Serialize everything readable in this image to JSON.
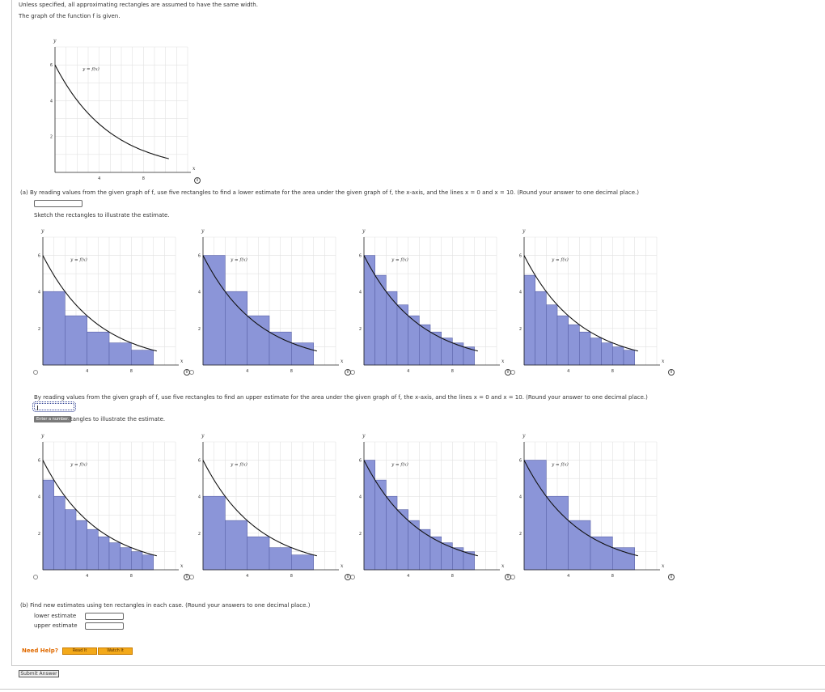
{
  "intro": {
    "line1": "Unless specified, all approximating rectangles are assumed to have the same width.",
    "line2": "The graph of the function f is given."
  },
  "graph_labels": {
    "y_axis": "y",
    "x_axis": "x",
    "curve": "y = f(x)",
    "y_ticks": [
      "6",
      "4",
      "2"
    ],
    "x_ticks": [
      "4",
      "8"
    ]
  },
  "part_a": {
    "question": "(a)  By reading values from the given graph of f, use five rectangles to find a lower estimate for the area under the given graph of f, the x-axis, and the lines x = 0 and x = 10. (Round your answer to one decimal place.)",
    "answer": "",
    "sketch_prompt": "Sketch the rectangles to illustrate the estimate.",
    "choices": [
      {
        "n": 5,
        "mode": "right"
      },
      {
        "n": 5,
        "mode": "left"
      },
      {
        "n": 10,
        "mode": "left"
      },
      {
        "n": 10,
        "mode": "right"
      }
    ],
    "upper_question": "By reading values from the given graph of f, use five rectangles to find an upper estimate for the area under the given graph of f, the x-axis, and the lines x = 0 and x = 10. (Round your answer to one decimal place.)",
    "upper_answer": "",
    "tooltip": "Enter a number.",
    "upper_sketch_prompt_tail": "tangles to illustrate the estimate.",
    "upper_choices": [
      {
        "n": 10,
        "mode": "right"
      },
      {
        "n": 5,
        "mode": "right"
      },
      {
        "n": 10,
        "mode": "left"
      },
      {
        "n": 5,
        "mode": "left"
      }
    ]
  },
  "part_b": {
    "question": "(b)  Find new estimates using ten rectangles in each case. (Round your answers to one decimal place.)",
    "lower_label": "lower estimate",
    "upper_label": "upper estimate",
    "lower_value": "",
    "upper_value": ""
  },
  "help": {
    "label": "Need Help?",
    "read_it": "Read It",
    "watch_it": "Watch It"
  },
  "submit": {
    "label": "Submit Answer"
  },
  "colors": {
    "rect_fill": "#8b95d8",
    "rect_stroke": "#5a63a8",
    "curve": "#111111",
    "grid": "#e2e2e2",
    "help_orange": "#e06a00",
    "button_orange": "#f3a91a"
  },
  "function_points": [
    {
      "x": 0,
      "y": 6.0
    },
    {
      "x": 1,
      "y": 4.9
    },
    {
      "x": 2,
      "y": 4.0
    },
    {
      "x": 3,
      "y": 3.3
    },
    {
      "x": 4,
      "y": 2.75
    },
    {
      "x": 5,
      "y": 2.25
    },
    {
      "x": 6,
      "y": 1.85
    },
    {
      "x": 7,
      "y": 1.5
    },
    {
      "x": 8,
      "y": 1.25
    },
    {
      "x": 9,
      "y": 1.0
    },
    {
      "x": 10,
      "y": 0.85
    }
  ]
}
